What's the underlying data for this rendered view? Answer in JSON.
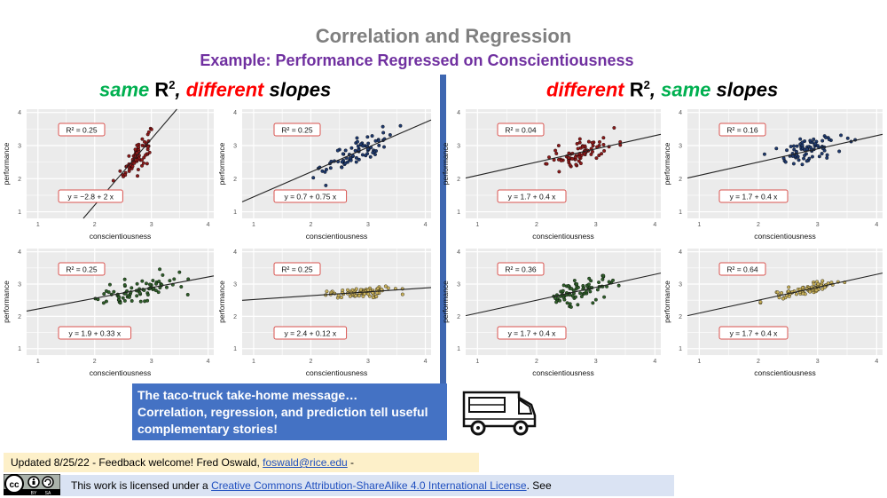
{
  "title": "Correlation and Regression",
  "subtitle": "Example: Performance Regressed on Conscientiousness",
  "left_heading": {
    "part1": "same",
    "R": "R",
    "sup": "2",
    "part2": ", ",
    "part3": "different",
    "part4": " slopes"
  },
  "right_heading": {
    "part1": "different",
    "R": "R",
    "sup": "2",
    "part2": ", ",
    "part3": "same",
    "part4": " slopes"
  },
  "colors": {
    "red_pts": "#8b1a1a",
    "blue_pts": "#1f3a6e",
    "green_pts": "#2f5e2a",
    "gold_pts": "#c9b15a",
    "accent": "#4472c4",
    "heading_green": "#00b050",
    "heading_red": "#ff0000"
  },
  "panel_common": {
    "xlabel": "conscientiousness",
    "ylabel": "performance",
    "xticks": [
      "1",
      "2",
      "3",
      "4"
    ],
    "yticks": [
      "1",
      "2",
      "3",
      "4"
    ]
  },
  "chart_data": [
    {
      "type": "scatter",
      "r2_label": "R² = 0.25",
      "eq_label": "y = −2.8 + 2 x",
      "intercept": -2.8,
      "slope": 2,
      "point_color": "red",
      "x_center": 2.75,
      "x_sd": 0.12,
      "xlim": [
        0.8,
        4.1
      ],
      "ylim": [
        0.8,
        4.1
      ]
    },
    {
      "type": "scatter",
      "r2_label": "R² = 0.25",
      "eq_label": "y = 0.7 + 0.75 x",
      "intercept": 0.7,
      "slope": 0.75,
      "point_color": "blue",
      "x_center": 2.8,
      "x_sd": 0.3,
      "xlim": [
        0.8,
        4.1
      ],
      "ylim": [
        0.8,
        4.1
      ]
    },
    {
      "type": "scatter",
      "r2_label": "R² = 0.04",
      "eq_label": "y = 1.7 + 0.4 x",
      "intercept": 1.7,
      "slope": 0.4,
      "point_color": "red",
      "x_center": 2.75,
      "x_sd": 0.3,
      "xlim": [
        0.8,
        4.1
      ],
      "ylim": [
        0.8,
        4.1
      ]
    },
    {
      "type": "scatter",
      "r2_label": "R² = 0.16",
      "eq_label": "y = 1.7 + 0.4 x",
      "intercept": 1.7,
      "slope": 0.4,
      "point_color": "blue",
      "x_center": 2.8,
      "x_sd": 0.3,
      "xlim": [
        0.8,
        4.1
      ],
      "ylim": [
        0.8,
        4.1
      ]
    },
    {
      "type": "scatter",
      "r2_label": "R² = 0.25",
      "eq_label": "y = 1.9 + 0.33 x",
      "intercept": 1.9,
      "slope": 0.33,
      "point_color": "green",
      "x_center": 2.8,
      "x_sd": 0.35,
      "xlim": [
        0.8,
        4.1
      ],
      "ylim": [
        0.8,
        4.1
      ]
    },
    {
      "type": "scatter",
      "r2_label": "R² = 0.25",
      "eq_label": "y = 2.4 + 0.12 x",
      "intercept": 2.4,
      "slope": 0.12,
      "point_color": "gold",
      "x_center": 2.85,
      "x_sd": 0.3,
      "xlim": [
        0.8,
        4.1
      ],
      "ylim": [
        0.8,
        4.1
      ]
    },
    {
      "type": "scatter",
      "r2_label": "R² = 0.36",
      "eq_label": "y = 1.7 + 0.4 x",
      "intercept": 1.7,
      "slope": 0.4,
      "point_color": "green",
      "x_center": 2.75,
      "x_sd": 0.28,
      "xlim": [
        0.8,
        4.1
      ],
      "ylim": [
        0.8,
        4.1
      ]
    },
    {
      "type": "scatter",
      "r2_label": "R² = 0.64",
      "eq_label": "y = 1.7 + 0.4 x",
      "intercept": 1.7,
      "slope": 0.4,
      "point_color": "gold",
      "x_center": 2.85,
      "x_sd": 0.3,
      "xlim": [
        0.8,
        4.1
      ],
      "ylim": [
        0.8,
        4.1
      ]
    }
  ],
  "callout": {
    "line1": "The taco-truck  take-home message…",
    "line2": "Correlation, regression, and prediction tell useful",
    "line3": "complementary stories!"
  },
  "footer": {
    "updated_text": "Updated 8/25/22 - Feedback welcome! Fred Oswald, ",
    "email": "foswald@rice.edu",
    "updated_tail": " -",
    "license_text": "This work is licensed under a ",
    "license_link": "Creative Commons Attribution-ShareAlike 4.0 International License",
    "license_tail": ". See"
  },
  "cc_badge": {
    "label1": "BY",
    "label2": "SA"
  }
}
